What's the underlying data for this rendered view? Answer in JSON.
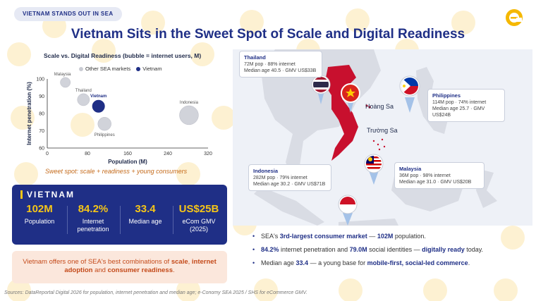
{
  "tag": "VIETNAM STANDS OUT IN SEA",
  "title": "Vietnam Sits in the Sweet Spot of Scale and Digital Readiness",
  "chart": {
    "title": "Scale vs. Digital Readiness (bubble = internet users, M)",
    "caption": "Sweet spot: scale + readiness + young consumers"
  },
  "chart_data": {
    "type": "scatter",
    "title": "Scale vs. Digital Readiness (bubble = internet users, M)",
    "xlabel": "Population (M)",
    "ylabel": "Internet penetration (%)",
    "xlim": [
      0,
      320
    ],
    "ylim": [
      60,
      100
    ],
    "xticks": [
      "0",
      "80",
      "160",
      "240",
      "320"
    ],
    "yticks": [
      "60",
      "70",
      "80",
      "90",
      "100"
    ],
    "legend": "top",
    "series": [
      {
        "name": "Other SEA markets",
        "color": "#c9cbd3",
        "points": [
          {
            "label": "Malaysia",
            "x": 36,
            "y": 98,
            "size": 35
          },
          {
            "label": "Thailand",
            "x": 72,
            "y": 88,
            "size": 63
          },
          {
            "label": "Philippines",
            "x": 114,
            "y": 74,
            "size": 84
          },
          {
            "label": "Indonesia",
            "x": 282,
            "y": 79,
            "size": 223
          }
        ]
      },
      {
        "name": "Vietnam",
        "color": "#1f2f86",
        "points": [
          {
            "label": "Vietnam",
            "x": 102,
            "y": 84.2,
            "size": 86
          }
        ]
      }
    ]
  },
  "stats": {
    "heading": "VIETNAM",
    "items": [
      {
        "value": "102M",
        "label": "Population"
      },
      {
        "value": "84.2%",
        "label": "Internet penetration"
      },
      {
        "value": "33.4",
        "label": "Median age"
      },
      {
        "value": "US$25B",
        "label": "eCom GMV (2025)"
      }
    ]
  },
  "note": {
    "p1": "Vietnam offers one of SEA's best combinations of ",
    "b1": "scale",
    "p2": ", ",
    "b2": "internet adoption",
    "p3": " and ",
    "b3": "consumer readiness",
    "p4": "."
  },
  "map": {
    "labels": {
      "hoang_sa": "Hoàng Sa",
      "truong_sa": "Trường Sa"
    },
    "callouts": {
      "thailand": {
        "name": "Thailand",
        "l1": "72M pop · 88% internet",
        "l2": "Median age 40.5 · GMV US$33B"
      },
      "philippines": {
        "name": "Philippines",
        "l1": "114M pop · 74% internet",
        "l2": "Median age 25.7 · GMV US$24B"
      },
      "indonesia": {
        "name": "Indonesia",
        "l1": "282M pop · 79% internet",
        "l2": "Median age 30.2 · GMV US$71B"
      },
      "malaysia": {
        "name": "Malaysia",
        "l1": "36M pop · 98% internet",
        "l2": "Median age 31.0 · GMV US$20B"
      }
    }
  },
  "bullets": [
    {
      "p1": "SEA's ",
      "b1": "3rd-largest consumer market",
      "p2": " — ",
      "b2": "102M",
      "p3": " population."
    },
    {
      "p1": "",
      "b1": "84.2%",
      "p2": " internet penetration and ",
      "b2": "79.0M",
      "p3": " social identities — ",
      "b3": "digitally ready",
      "p4": " today."
    },
    {
      "p1": "Median age ",
      "b1": "33.4",
      "p2": " — a young base for ",
      "b2": "mobile-first, social-led commerce",
      "p3": "."
    }
  ],
  "sources": "Sources: DataReportal Digital 2026 for population, internet penetration and median age; e-Conomy SEA 2025 / SHS for eCommerce GMV.",
  "colors": {
    "navy": "#1f2f86",
    "gold": "#f5c518",
    "red": "#c8102e",
    "map_land": "#d9dce4",
    "map_sea": "#eef1f7"
  }
}
